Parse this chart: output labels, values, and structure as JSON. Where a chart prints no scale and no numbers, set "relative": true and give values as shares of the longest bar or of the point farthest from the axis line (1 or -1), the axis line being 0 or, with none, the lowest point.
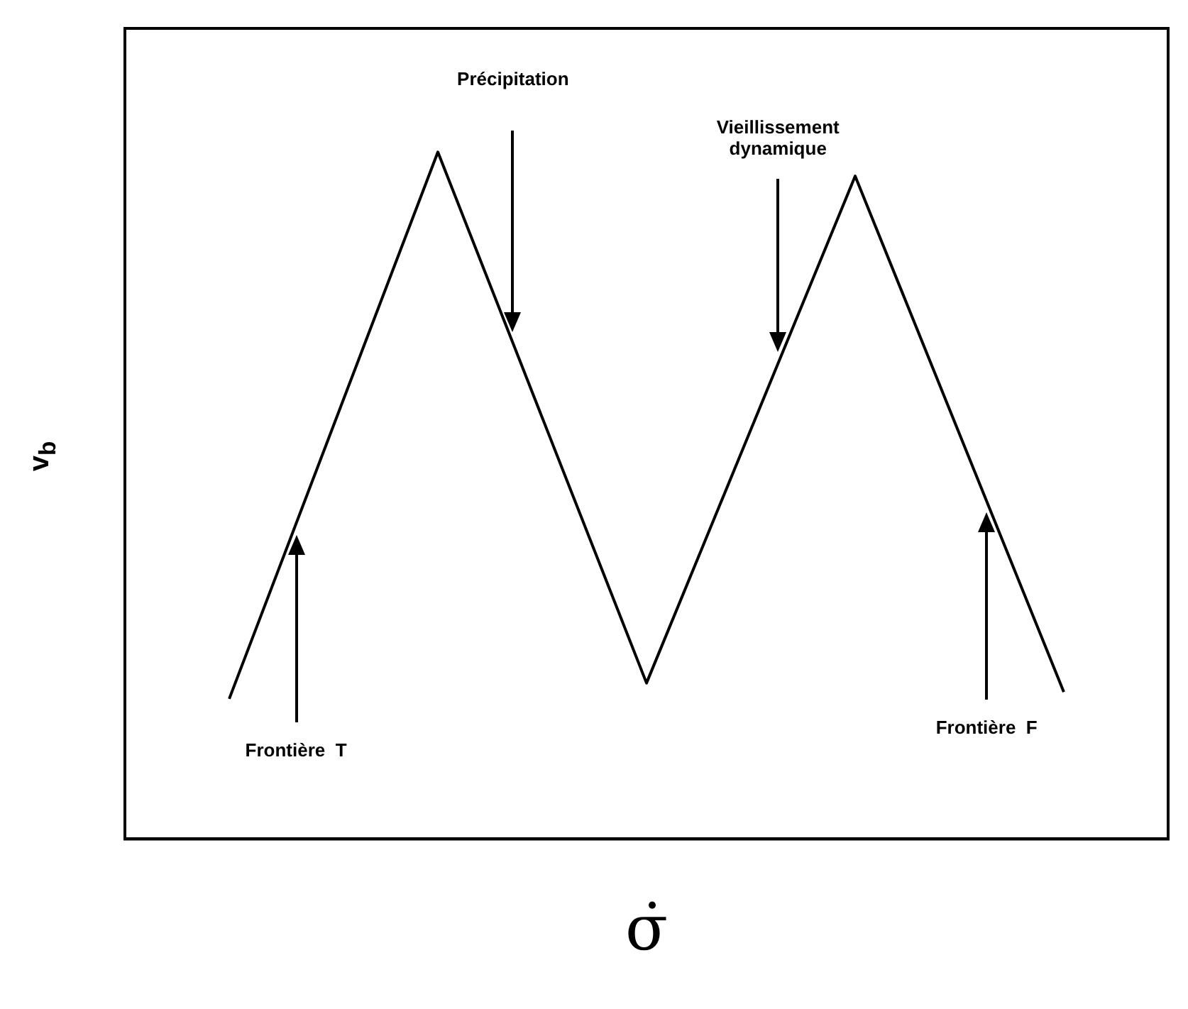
{
  "chart_data": {
    "type": "line",
    "relative": true,
    "xlabel": "σ̇",
    "ylabel": "v$_{b}$",
    "categories": [
      null,
      null,
      null,
      null,
      null
    ],
    "series": [
      {
        "color": "#000000",
        "values": [
          0.204,
          1,
          0.227,
          0.965,
          0.214
        ]
      }
    ],
    "annotations": [
      "Précipitation",
      "Vieillissement dynamique",
      "Frontière  T",
      "Frontière  F"
    ],
    "marker": "none",
    "line_style": "solid",
    "grid": false,
    "legend": false,
    "tick_labels": false
  }
}
